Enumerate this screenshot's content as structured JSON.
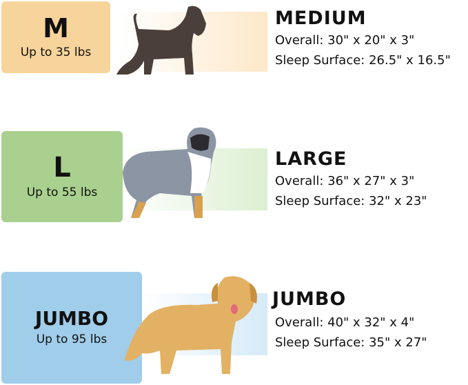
{
  "sizes": [
    {
      "code": "M",
      "weight": "Up to 35 lbs",
      "name": "MEDIUM",
      "overall": "Overall: 30\" x 20\" x 3\"",
      "sleep": "Sleep Surface: 26.5\" x 16.5\"",
      "color": "#f7d49b",
      "band_color": "#fde8c9",
      "dog": "schnauzer"
    },
    {
      "code": "L",
      "weight": "Up to 55 lbs",
      "name": "LARGE",
      "overall": "Overall: 36\" x 27\" x 3\"",
      "sleep": "Sleep Surface: 32\" x 23\"",
      "color": "#a9d08e",
      "band_color": "#dcefd1",
      "dog": "australian-shepherd"
    },
    {
      "code": "JUMBO",
      "weight": "Up to 95 lbs",
      "name": "JUMBO",
      "overall": "Overall: 40\" x 32\" x 4\"",
      "sleep": "Sleep Surface: 35\" x 27\"",
      "color": "#a0cdea",
      "band_color": "#d5eaf8",
      "dog": "golden-retriever"
    }
  ]
}
